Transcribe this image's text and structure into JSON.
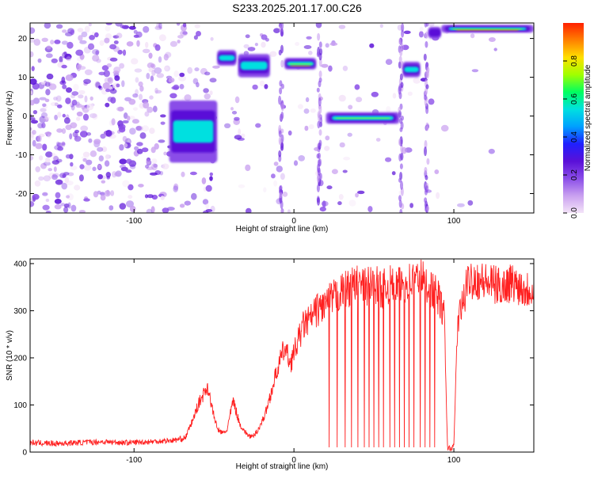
{
  "title": "S233.2025.201.17.00.C26",
  "chart_data": [
    {
      "type": "heatmap",
      "xlabel": "Height of straight line (km)",
      "ylabel": "Frequency (Hz)",
      "xlim": [
        -165,
        150
      ],
      "ylim": [
        -25,
        24
      ],
      "x_ticks": [
        -100,
        0,
        100
      ],
      "y_ticks": [
        -20,
        -10,
        0,
        10,
        20
      ],
      "colorbar": {
        "label": "Normalized spectral amplitude",
        "range": [
          0.0,
          1.0
        ],
        "ticks": [
          "0.0",
          "0.2",
          "0.4",
          "0.6",
          "0.8"
        ],
        "colormap": [
          "#f4e4f8",
          "#c9a0f0",
          "#8a4de8",
          "#5a10d8",
          "#2020ff",
          "#00a0ff",
          "#00e0e0",
          "#00ff60",
          "#a0ff00",
          "#ffe000",
          "#ff8000",
          "#ff2000"
        ]
      },
      "bands": [
        {
          "x0": -35,
          "x1": -15,
          "y0": 10,
          "y1": 16,
          "amplitude": 0.45
        },
        {
          "x0": -48,
          "x1": -36,
          "y0": 13,
          "y1": 17,
          "amplitude": 0.5
        },
        {
          "x0": -6,
          "x1": 14,
          "y0": 12,
          "y1": 15,
          "amplitude": 0.85
        },
        {
          "x0": 20,
          "x1": 66,
          "y0": -2,
          "y1": 1,
          "amplitude": 0.8
        },
        {
          "x0": 68,
          "x1": 79,
          "y0": 10,
          "y1": 14,
          "amplitude": 0.45
        },
        {
          "x0": 84,
          "x1": 92,
          "y0": 20,
          "y1": 23,
          "amplitude": 0.4
        },
        {
          "x0": 92,
          "x1": 150,
          "y0": 21.5,
          "y1": 23.5,
          "amplitude": 0.9
        },
        {
          "x0": -78,
          "x1": -48,
          "y0": -12,
          "y1": 4,
          "amplitude": 0.5
        }
      ]
    },
    {
      "type": "line",
      "xlabel": "Height of straight line (km)",
      "ylabel": "SNR (10 * v/v)",
      "xlim": [
        -165,
        150
      ],
      "ylim": [
        0,
        410
      ],
      "x_ticks": [
        -100,
        0,
        100
      ],
      "y_ticks": [
        0,
        100,
        200,
        300,
        400
      ],
      "color": "#ff2020",
      "series": [
        {
          "x": [
            -165,
            -150,
            -135,
            -120,
            -105,
            -90,
            -75,
            -68,
            -63,
            -60,
            -57,
            -54,
            -51,
            -48,
            -45,
            -42,
            -38,
            -34,
            -30,
            -26,
            -22,
            -18,
            -14,
            -10,
            -6,
            -2,
            2,
            6,
            10,
            14,
            18,
            22,
            26,
            30,
            35,
            40,
            45,
            50,
            55,
            60,
            65,
            70,
            75,
            80,
            85,
            90,
            94,
            96,
            98,
            100,
            102,
            104,
            106,
            108,
            110,
            115,
            120,
            125,
            130,
            135,
            140,
            145,
            150
          ],
          "y": [
            20,
            18,
            20,
            22,
            20,
            22,
            25,
            30,
            70,
            100,
            120,
            140,
            90,
            50,
            40,
            45,
            110,
            60,
            40,
            30,
            50,
            80,
            130,
            180,
            220,
            190,
            230,
            270,
            280,
            300,
            310,
            320,
            330,
            340,
            350,
            355,
            350,
            360,
            345,
            355,
            350,
            360,
            365,
            370,
            350,
            330,
            290,
            10,
            8,
            12,
            250,
            300,
            320,
            350,
            370,
            365,
            360,
            355,
            350,
            360,
            355,
            345,
            350
          ]
        }
      ],
      "dropouts_x": [
        22,
        27,
        32,
        36,
        40,
        44,
        47,
        50,
        53,
        56,
        60,
        63,
        66,
        69,
        72,
        75,
        79,
        82,
        85,
        88
      ]
    }
  ]
}
